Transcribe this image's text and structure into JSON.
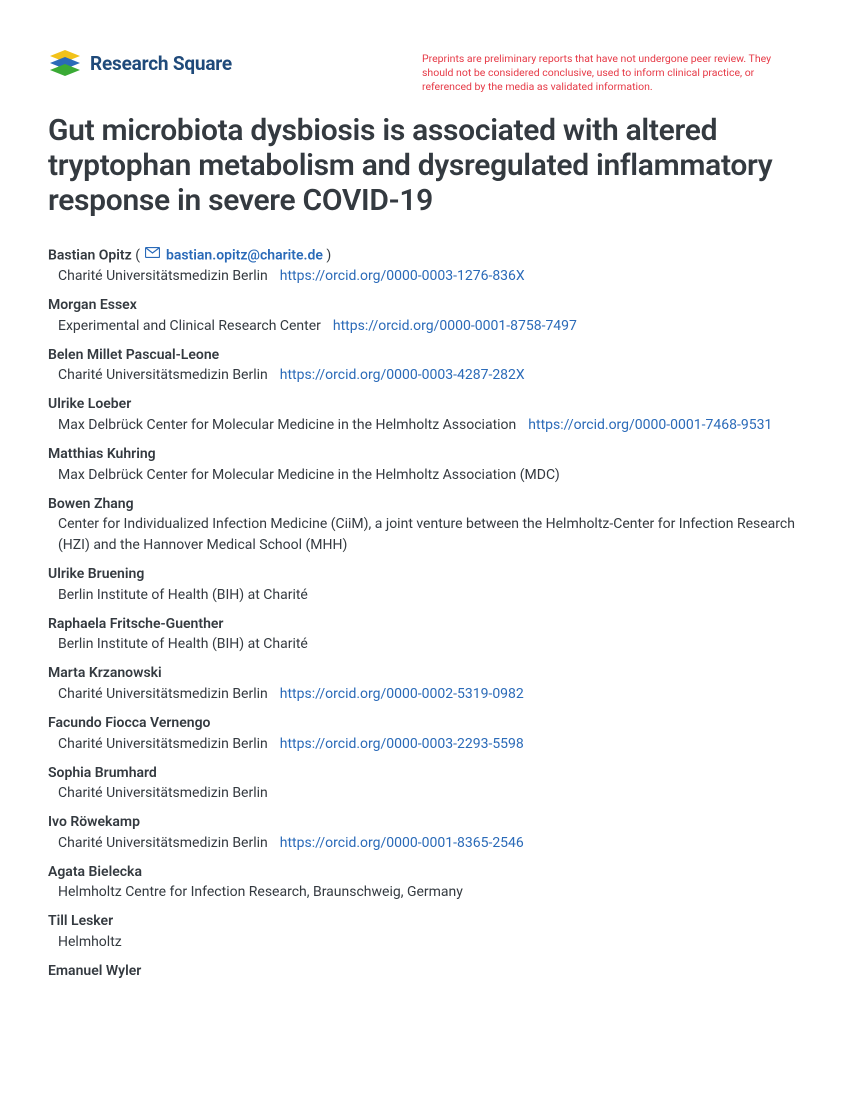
{
  "brand": {
    "name": "Research Square",
    "logo_colors": {
      "yellow": "#f2c21a",
      "blue": "#2a6ab8",
      "green": "#3aaa35"
    }
  },
  "disclaimer": "Preprints are preliminary reports that have not undergone peer review. They should not be considered conclusive, used to inform clinical practice, or referenced by the media as validated information.",
  "title": "Gut microbiota dysbiosis is associated with altered tryptophan metabolism and dysregulated inflammatory response in severe COVID-19",
  "corresponding_email": "bastian.opitz@charite.de",
  "colors": {
    "text": "#343a40",
    "link": "#2a6ab8",
    "disclaimer": "#e63946"
  },
  "authors": [
    {
      "name": "Bastian Opitz",
      "corresponding": true,
      "affiliation": "Charité Universitätsmedizin Berlin",
      "orcid": "https://orcid.org/0000-0003-1276-836X"
    },
    {
      "name": "Morgan Essex",
      "affiliation": "Experimental and Clinical Research Center",
      "orcid": "https://orcid.org/0000-0001-8758-7497"
    },
    {
      "name": "Belen Millet Pascual-Leone",
      "affiliation": "Charité Universitätsmedizin Berlin",
      "orcid": "https://orcid.org/0000-0003-4287-282X"
    },
    {
      "name": "Ulrike Loeber",
      "affiliation": "Max Delbrück Center for Molecular Medicine in the Helmholtz Association",
      "orcid": "https://orcid.org/0000-0001-7468-9531"
    },
    {
      "name": "Matthias Kuhring",
      "affiliation": "Max Delbrück Center for Molecular Medicine in the Helmholtz Association (MDC)"
    },
    {
      "name": "Bowen Zhang",
      "affiliation": "Center for Individualized Infection Medicine (CiiM), a joint venture between the Helmholtz-Center for Infection Research (HZI) and the Hannover Medical School (MHH)"
    },
    {
      "name": "Ulrike Bruening",
      "affiliation": "Berlin Institute of Health (BIH) at Charité"
    },
    {
      "name": "Raphaela Fritsche-Guenther",
      "affiliation": "Berlin Institute of Health (BIH) at Charité"
    },
    {
      "name": "Marta Krzanowski",
      "affiliation": "Charité Universitätsmedizin Berlin",
      "orcid": "https://orcid.org/0000-0002-5319-0982"
    },
    {
      "name": "Facundo Fiocca Vernengo",
      "affiliation": "Charité Universitätsmedizin Berlin",
      "orcid": "https://orcid.org/0000-0003-2293-5598"
    },
    {
      "name": "Sophia Brumhard",
      "affiliation": "Charité Universitätsmedizin Berlin"
    },
    {
      "name": "Ivo Röwekamp",
      "affiliation": "Charité Universitätsmedizin Berlin",
      "orcid": "https://orcid.org/0000-0001-8365-2546"
    },
    {
      "name": "Agata Bielecka",
      "affiliation": "Helmholtz Centre for Infection Research, Braunschweig, Germany"
    },
    {
      "name": "Till Lesker",
      "affiliation": "Helmholtz"
    },
    {
      "name": "Emanuel Wyler",
      "affiliation": ""
    }
  ]
}
